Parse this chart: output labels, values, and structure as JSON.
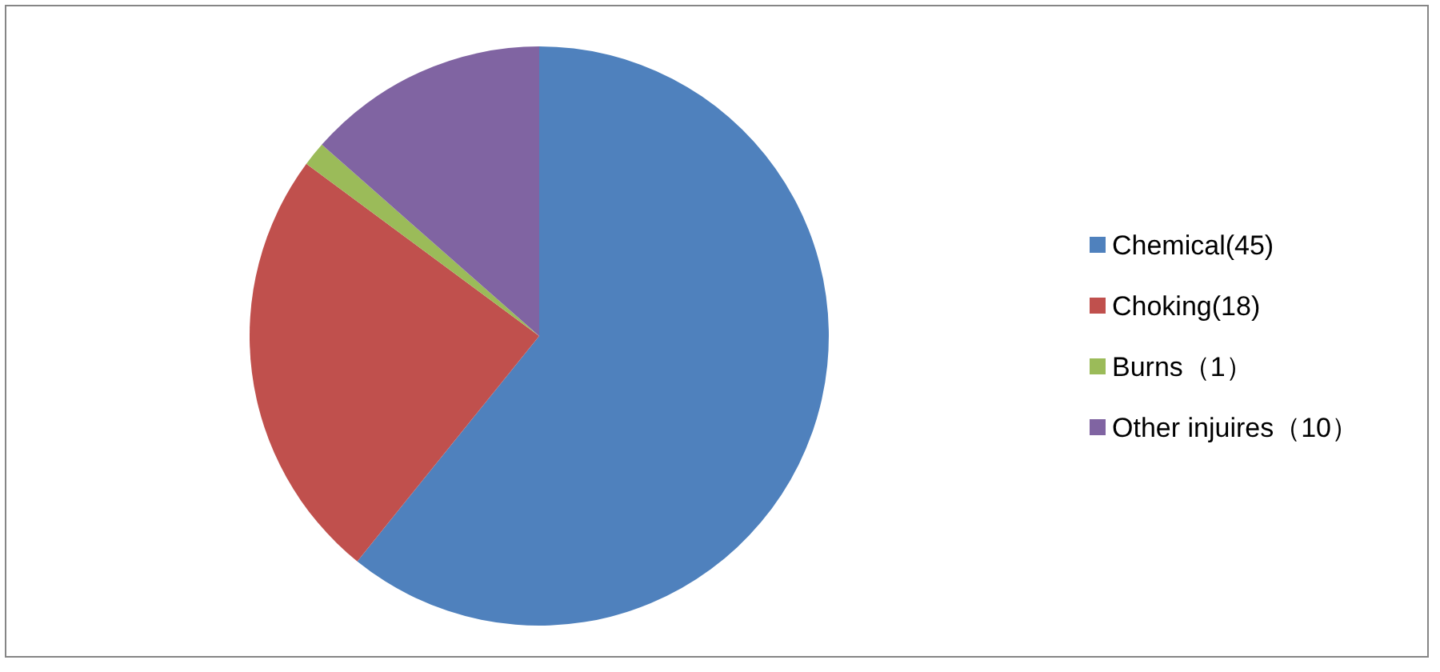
{
  "chart_data": {
    "type": "pie",
    "categories": [
      "Chemical(45)",
      "Choking(18)",
      "Burns（1）",
      "Other injuires（10）"
    ],
    "values": [
      45,
      18,
      1,
      10
    ],
    "colors": [
      "#4f81bd",
      "#c0504d",
      "#9bbb59",
      "#8064a2"
    ],
    "legend": "right"
  }
}
